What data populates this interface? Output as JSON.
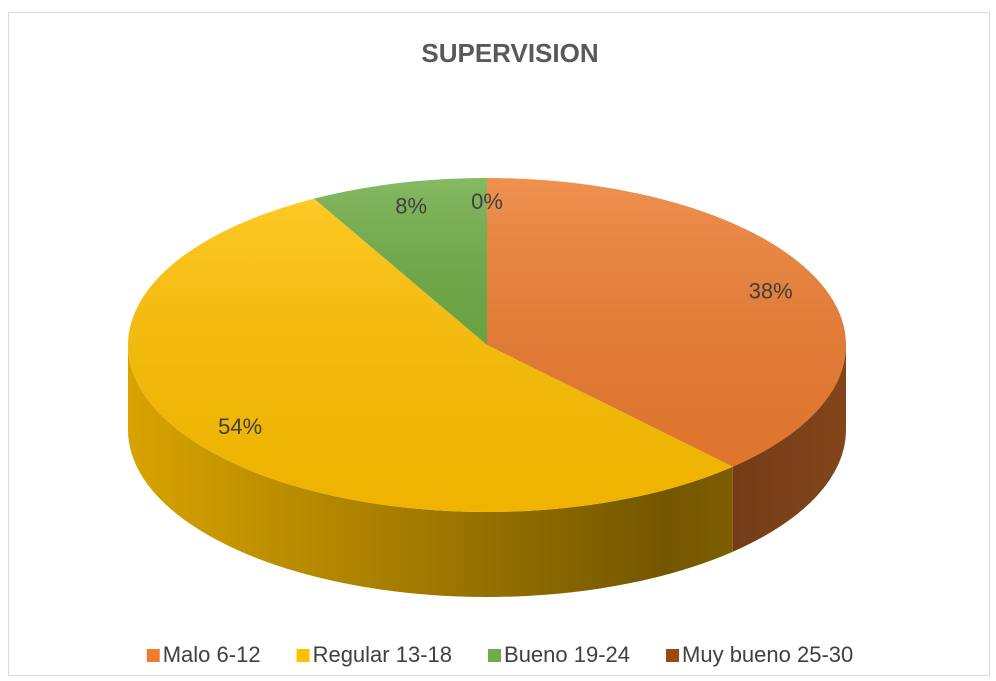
{
  "chart_data": {
    "type": "pie",
    "title": "SUPERVISION",
    "categories": [
      "Malo 6-12",
      "Regular 13-18",
      "Bueno 19-24",
      "Muy bueno 25-30"
    ],
    "values": [
      38,
      54,
      8,
      0
    ],
    "value_labels": [
      "38%",
      "54%",
      "8%",
      "0%"
    ],
    "colors": [
      "#ed7d31",
      "#ffc000",
      "#70ad47",
      "#9e480e"
    ],
    "legend": "bottom"
  }
}
